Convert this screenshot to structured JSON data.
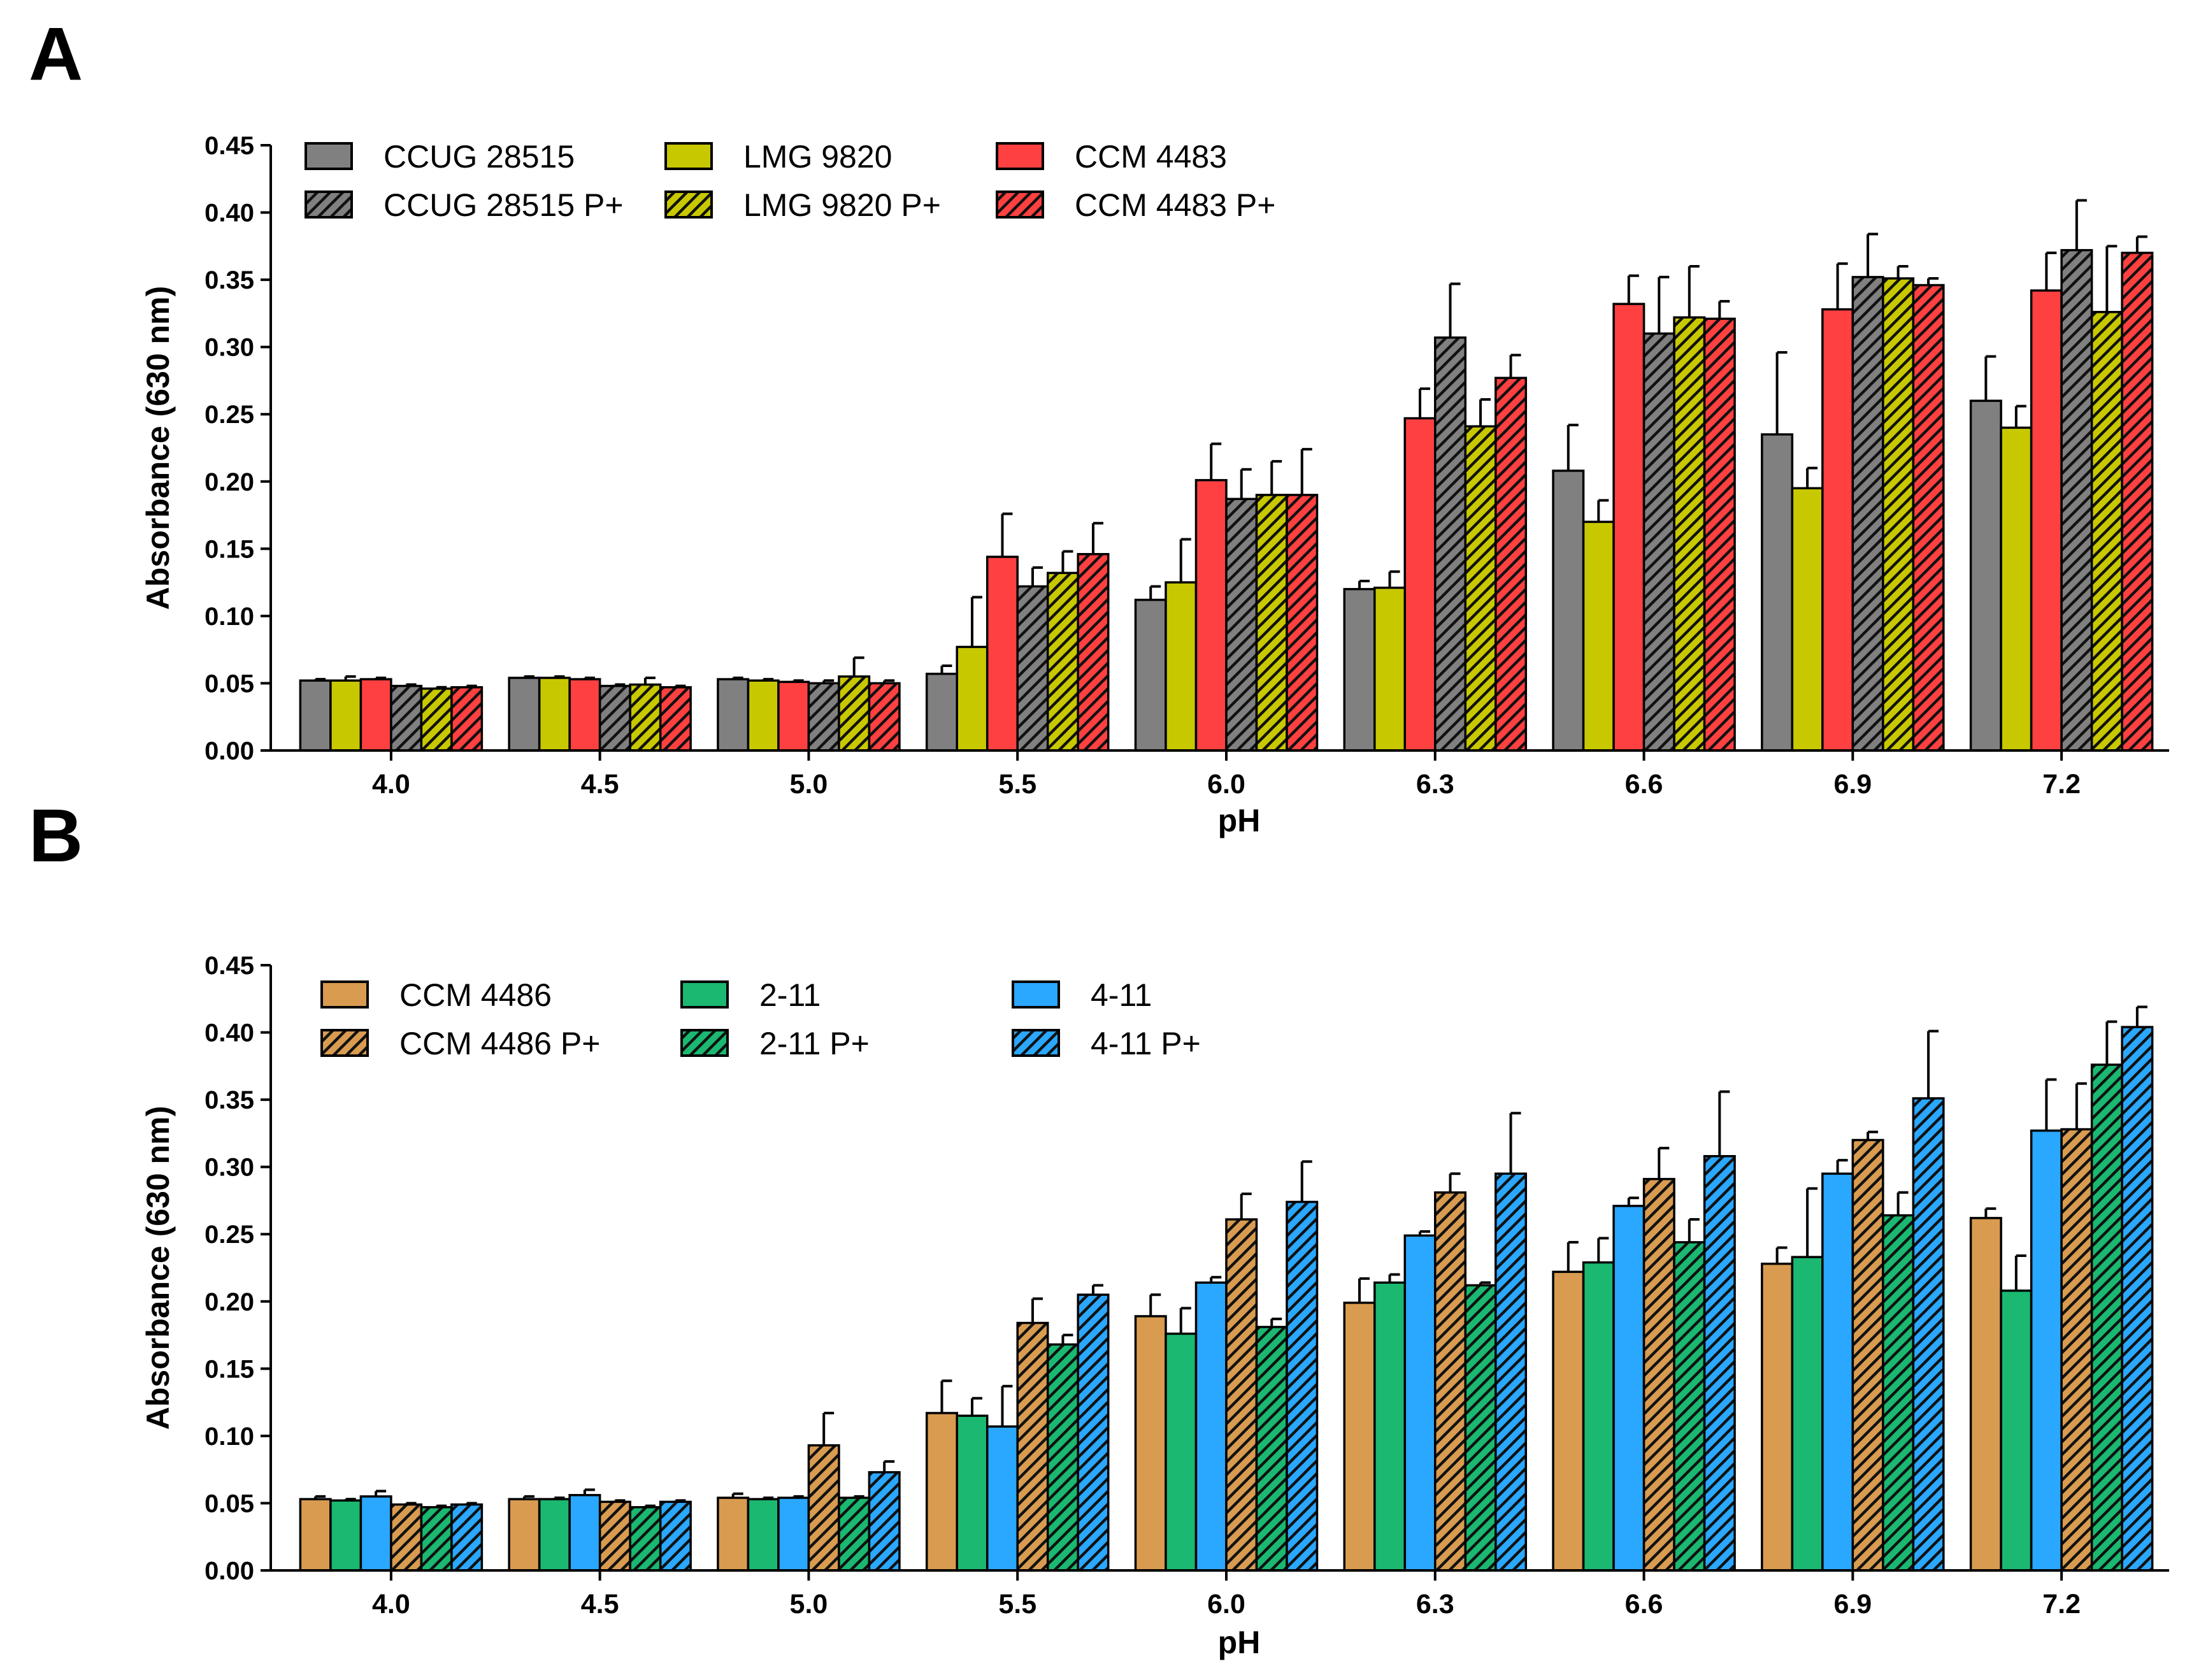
{
  "chart_data": [
    {
      "panel": "A",
      "type": "bar",
      "xlabel": "pH",
      "ylabel": "Absorbance (630 nm)",
      "ylim": [
        0,
        0.45
      ],
      "yticks": [
        "0.00",
        "0.05",
        "0.10",
        "0.15",
        "0.20",
        "0.25",
        "0.30",
        "0.35",
        "0.40",
        "0.45"
      ],
      "categories": [
        "4.0",
        "4.5",
        "5.0",
        "5.5",
        "6.0",
        "6.3",
        "6.6",
        "6.9",
        "7.2"
      ],
      "legend_position": "top-left",
      "series": [
        {
          "name": "CCUG 28515",
          "color": "#808080",
          "hatched": false,
          "values": [
            0.052,
            0.054,
            0.053,
            0.057,
            0.112,
            0.12,
            0.208,
            0.235,
            0.26
          ],
          "errors": [
            0.001,
            0.001,
            0.001,
            0.006,
            0.01,
            0.006,
            0.034,
            0.061,
            0.033
          ]
        },
        {
          "name": "LMG 9820",
          "color": "#c8c800",
          "hatched": false,
          "values": [
            0.052,
            0.054,
            0.052,
            0.077,
            0.125,
            0.121,
            0.17,
            0.195,
            0.24
          ],
          "errors": [
            0.003,
            0.001,
            0.001,
            0.037,
            0.032,
            0.012,
            0.016,
            0.015,
            0.016
          ]
        },
        {
          "name": "CCM 4483",
          "color": "#ff4040",
          "hatched": false,
          "values": [
            0.053,
            0.053,
            0.051,
            0.144,
            0.201,
            0.247,
            0.332,
            0.328,
            0.342
          ],
          "errors": [
            0.001,
            0.001,
            0.001,
            0.032,
            0.027,
            0.022,
            0.021,
            0.034,
            0.028
          ]
        },
        {
          "name": "CCUG 28515 P+",
          "color": "#808080",
          "hatched": true,
          "values": [
            0.048,
            0.048,
            0.05,
            0.122,
            0.187,
            0.307,
            0.31,
            0.352,
            0.372
          ],
          "errors": [
            0.001,
            0.001,
            0.002,
            0.014,
            0.022,
            0.04,
            0.042,
            0.032,
            0.037
          ]
        },
        {
          "name": "LMG 9820 P+",
          "color": "#c8c800",
          "hatched": true,
          "values": [
            0.046,
            0.049,
            0.055,
            0.132,
            0.19,
            0.241,
            0.322,
            0.351,
            0.326
          ],
          "errors": [
            0.001,
            0.005,
            0.014,
            0.016,
            0.025,
            0.02,
            0.038,
            0.009,
            0.049
          ]
        },
        {
          "name": "CCM 4483 P+",
          "color": "#ff4040",
          "hatched": true,
          "values": [
            0.047,
            0.047,
            0.05,
            0.146,
            0.19,
            0.277,
            0.321,
            0.346,
            0.37
          ],
          "errors": [
            0.001,
            0.001,
            0.002,
            0.023,
            0.034,
            0.017,
            0.013,
            0.005,
            0.012
          ]
        }
      ]
    },
    {
      "panel": "B",
      "type": "bar",
      "xlabel": "pH",
      "ylabel": "Absorbance (630 nm)",
      "ylim": [
        0,
        0.45
      ],
      "yticks": [
        "0.00",
        "0.05",
        "0.10",
        "0.15",
        "0.20",
        "0.25",
        "0.30",
        "0.35",
        "0.40",
        "0.45"
      ],
      "categories": [
        "4.0",
        "4.5",
        "5.0",
        "5.5",
        "6.0",
        "6.3",
        "6.6",
        "6.9",
        "7.2"
      ],
      "legend_position": "top-left",
      "series": [
        {
          "name": "CCM 4486",
          "color": "#d89b50",
          "hatched": false,
          "values": [
            0.053,
            0.053,
            0.054,
            0.117,
            0.189,
            0.199,
            0.222,
            0.228,
            0.262
          ],
          "errors": [
            0.002,
            0.002,
            0.003,
            0.024,
            0.016,
            0.018,
            0.022,
            0.012,
            0.007
          ]
        },
        {
          "name": "2-11",
          "color": "#1ab870",
          "hatched": false,
          "values": [
            0.052,
            0.053,
            0.053,
            0.115,
            0.176,
            0.214,
            0.229,
            0.233,
            0.208
          ],
          "errors": [
            0.001,
            0.001,
            0.001,
            0.013,
            0.019,
            0.006,
            0.018,
            0.051,
            0.026
          ]
        },
        {
          "name": "4-11",
          "color": "#2aa7ff",
          "hatched": false,
          "values": [
            0.055,
            0.056,
            0.054,
            0.107,
            0.214,
            0.249,
            0.271,
            0.295,
            0.327
          ],
          "errors": [
            0.004,
            0.004,
            0.001,
            0.03,
            0.004,
            0.003,
            0.006,
            0.01,
            0.038
          ]
        },
        {
          "name": "CCM 4486 P+",
          "color": "#d89b50",
          "hatched": true,
          "values": [
            0.049,
            0.051,
            0.093,
            0.184,
            0.261,
            0.281,
            0.291,
            0.32,
            0.328
          ],
          "errors": [
            0.001,
            0.001,
            0.024,
            0.018,
            0.019,
            0.014,
            0.023,
            0.006,
            0.034
          ]
        },
        {
          "name": "2-11 P+",
          "color": "#1ab870",
          "hatched": true,
          "values": [
            0.047,
            0.047,
            0.054,
            0.168,
            0.181,
            0.212,
            0.244,
            0.264,
            0.376
          ],
          "errors": [
            0.001,
            0.001,
            0.001,
            0.007,
            0.006,
            0.002,
            0.017,
            0.017,
            0.032
          ]
        },
        {
          "name": "4-11 P+",
          "color": "#2aa7ff",
          "hatched": true,
          "values": [
            0.049,
            0.051,
            0.073,
            0.205,
            0.274,
            0.295,
            0.308,
            0.351,
            0.404
          ],
          "errors": [
            0.001,
            0.001,
            0.008,
            0.007,
            0.03,
            0.045,
            0.048,
            0.05,
            0.015
          ]
        }
      ]
    }
  ]
}
